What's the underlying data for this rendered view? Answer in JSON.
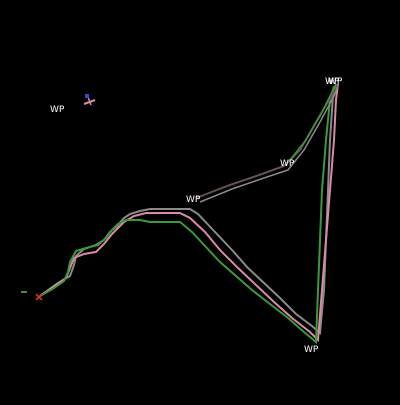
{
  "map": {
    "background": "#000000",
    "waypoint_label": "WP",
    "track_colors": {
      "gray": "#8a8a8a",
      "pink": "#d98aa6",
      "green": "#3a9a3a",
      "brown": "#6a4f50"
    },
    "marker_colors": {
      "current_position": "#d23a2a",
      "aircraft_icon": "#d98aa6",
      "aircraft_nose": "#3a4ad0",
      "start_tick": "#3a9a3a"
    },
    "icons": [
      "cross-marker-icon",
      "aircraft-icon"
    ]
  },
  "waypoints": [
    {
      "id": "wp-1",
      "label": "WP"
    },
    {
      "id": "wp-2",
      "label": "WP"
    },
    {
      "id": "wp-3",
      "label": "WP"
    },
    {
      "id": "wp-4",
      "label": "WP"
    },
    {
      "id": "wp-5",
      "label": "WP"
    },
    {
      "id": "wp-6",
      "label": "WP"
    }
  ]
}
